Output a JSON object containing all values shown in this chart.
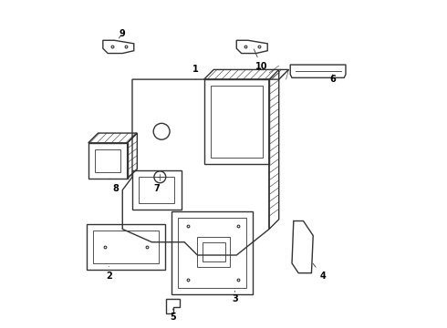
{
  "background_color": "#ffffff",
  "line_color": "#333333",
  "label_color": "#000000",
  "lw_main": 1.0,
  "lw_thin": 0.6,
  "lw_hatch": 0.4,
  "label_fontsize": 7
}
